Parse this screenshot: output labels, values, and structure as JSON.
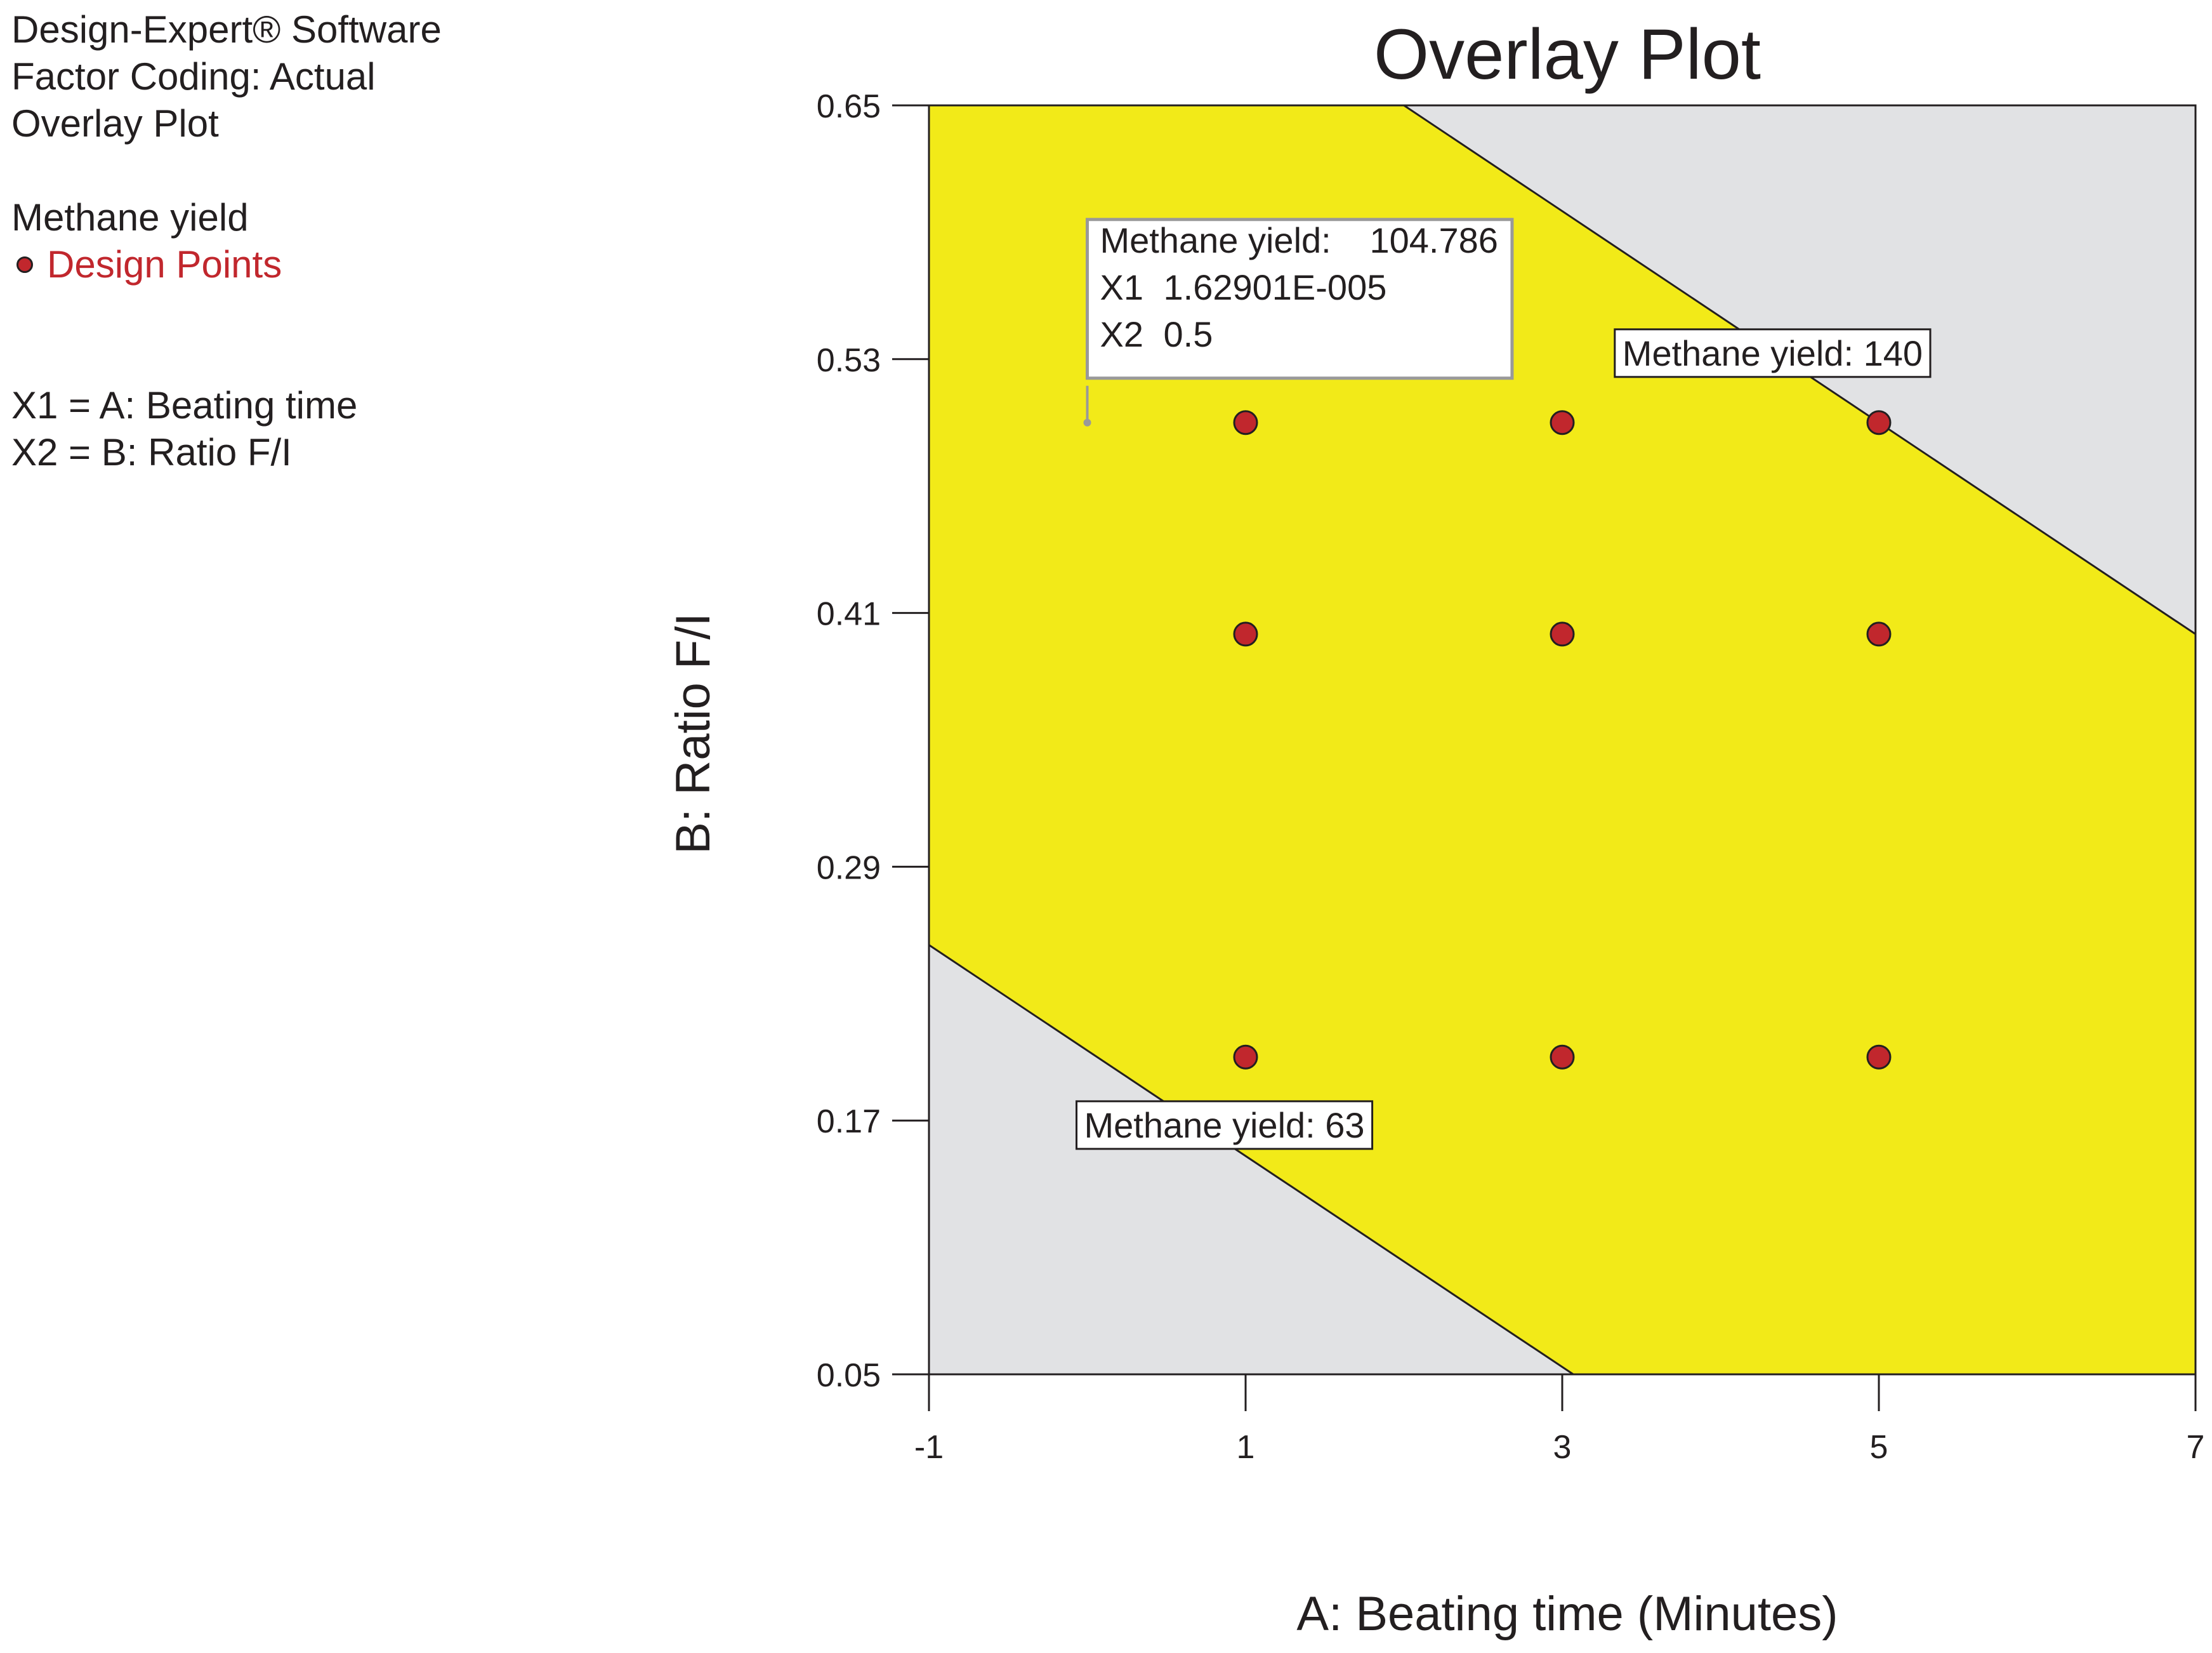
{
  "info_panel": {
    "software": "Design-Expert® Software",
    "factor_coding": "Factor Coding: Actual",
    "plot_name": "Overlay Plot",
    "response": "Methane yield",
    "legend_label": "Design Points",
    "x1_def": "X1 = A: Beating time",
    "x2_def": "X2 = B: Ratio F/I"
  },
  "colors": {
    "feasible": "#f2ea18",
    "infeasible": "#e1e2e4",
    "design_point": "#c1272d",
    "flag_border": "#999999"
  },
  "chart_data": {
    "type": "scatter",
    "title": "Overlay Plot",
    "xlabel": "A: Beating time  (Minutes)",
    "ylabel": "B: Ratio F/I",
    "xlim": [
      -1,
      7
    ],
    "ylim": [
      0.05,
      0.65
    ],
    "xticks": [
      -1,
      1,
      3,
      5,
      7
    ],
    "xtick_labels": [
      "-1",
      "1",
      "3",
      "5",
      "7"
    ],
    "yticks": [
      0.05,
      0.17,
      0.29,
      0.41,
      0.53,
      0.65
    ],
    "ytick_labels": [
      "0.05",
      "0.17",
      "0.29",
      "0.41",
      "0.53",
      "0.65"
    ],
    "grid": false,
    "feasible_region": {
      "upper_boundary": {
        "label": "Methane yield: 140",
        "from": [
          2,
          0.65
        ],
        "to": [
          7,
          0.4
        ]
      },
      "lower_boundary": {
        "label": "Methane yield: 63",
        "from": [
          -1,
          0.253
        ],
        "to": [
          3.07,
          0.05
        ]
      }
    },
    "design_points": [
      {
        "x": 1,
        "y": 0.5
      },
      {
        "x": 3,
        "y": 0.5
      },
      {
        "x": 5,
        "y": 0.5
      },
      {
        "x": 1,
        "y": 0.4
      },
      {
        "x": 3,
        "y": 0.4
      },
      {
        "x": 5,
        "y": 0.4
      },
      {
        "x": 1,
        "y": 0.2
      },
      {
        "x": 3,
        "y": 0.2
      },
      {
        "x": 5,
        "y": 0.2
      }
    ],
    "flag": {
      "at": {
        "x": 0,
        "y": 0.5
      },
      "lines": [
        {
          "label": "Methane yield:",
          "value": "104.786"
        },
        {
          "label": "X1",
          "value": "1.62901E-005"
        },
        {
          "label": "X2",
          "value": "0.5"
        }
      ]
    }
  }
}
